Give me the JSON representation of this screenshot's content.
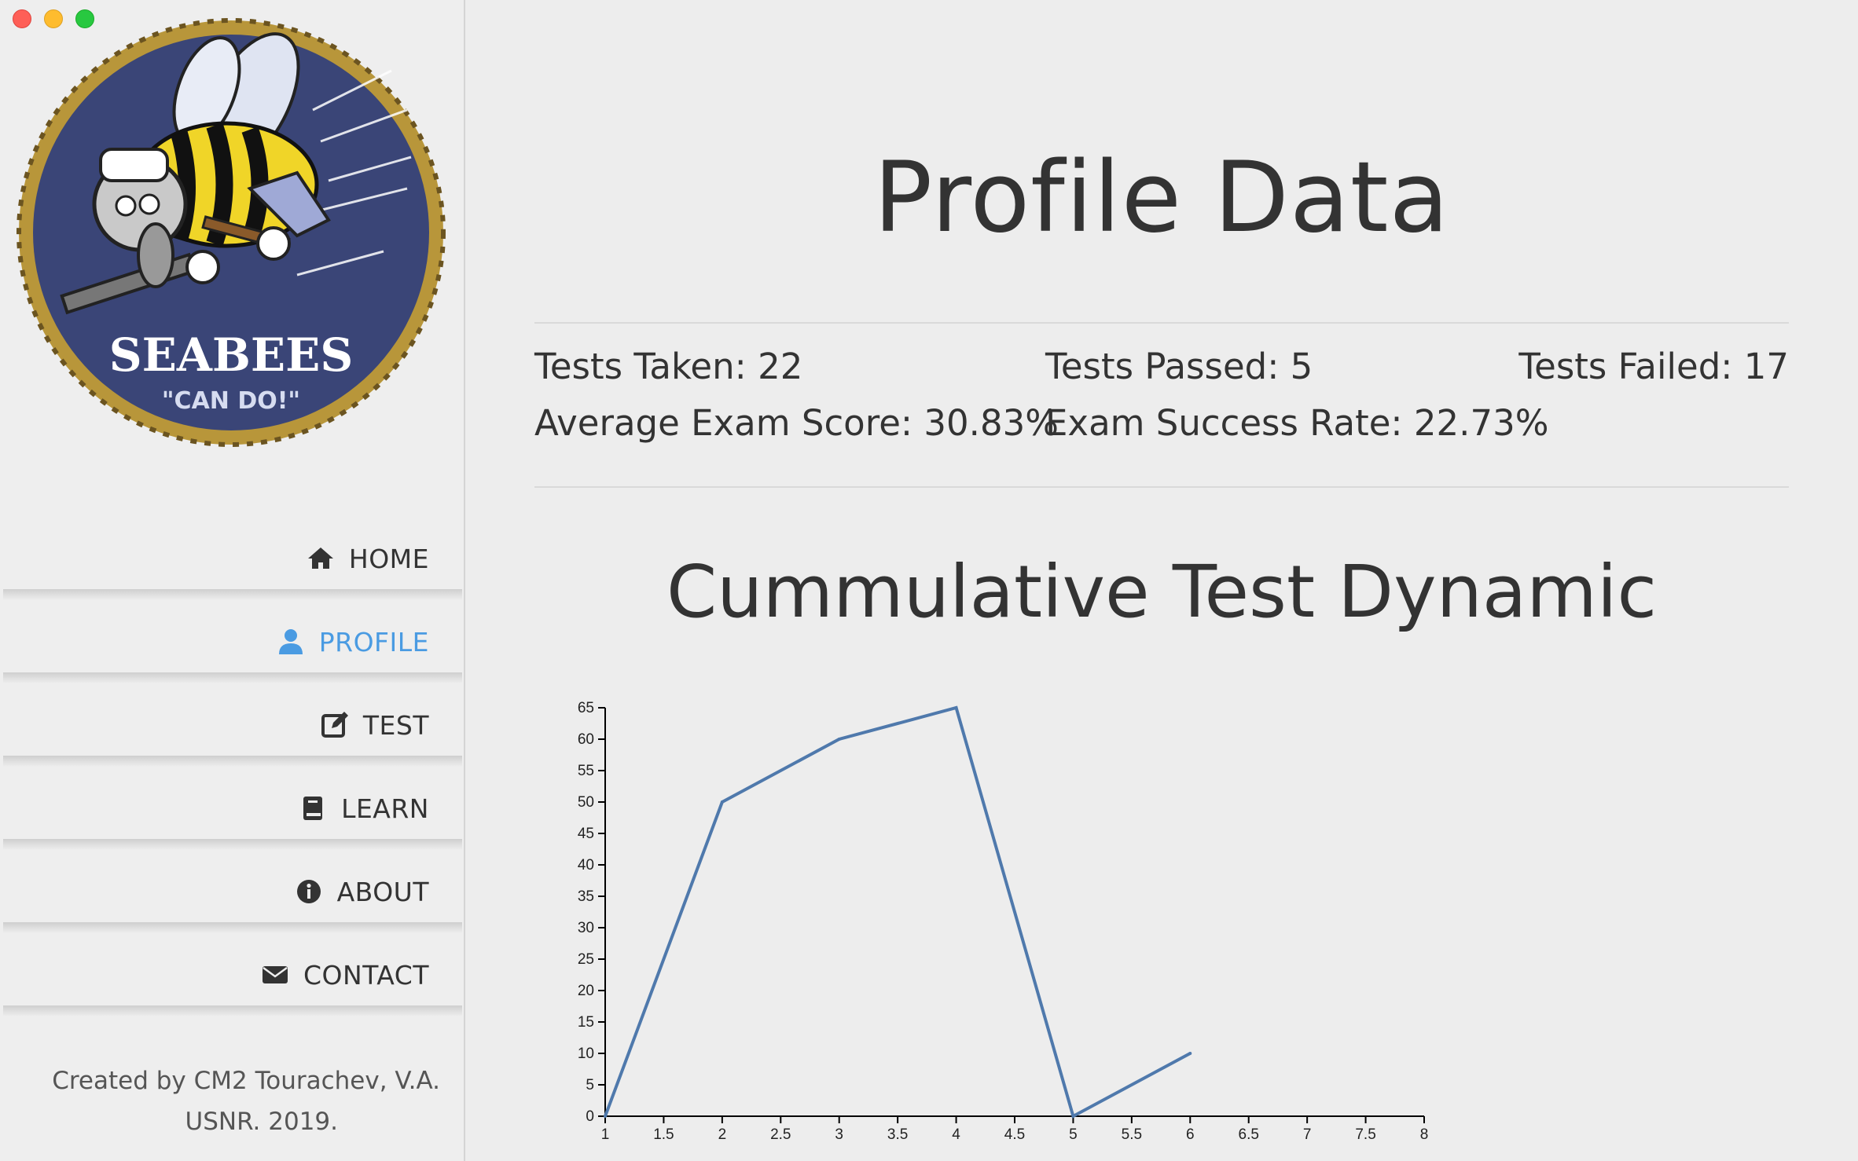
{
  "sidebar": {
    "logo": {
      "text_main": "SEABEES",
      "text_sub": "\"CAN DO!\""
    },
    "nav": [
      {
        "label": "HOME",
        "icon": "home-icon",
        "active": false
      },
      {
        "label": "PROFILE",
        "icon": "user-icon",
        "active": true
      },
      {
        "label": "TEST",
        "icon": "edit-icon",
        "active": false
      },
      {
        "label": "LEARN",
        "icon": "book-icon",
        "active": false
      },
      {
        "label": "ABOUT",
        "icon": "info-icon",
        "active": false
      },
      {
        "label": "CONTACT",
        "icon": "envelope-icon",
        "active": false
      }
    ],
    "footer": {
      "line1": "Created by CM2 Tourachev, V.A.",
      "line2": "USNR. 2019."
    }
  },
  "main": {
    "title": "Profile Data",
    "stats": {
      "tests_taken": "Tests Taken: 22",
      "tests_passed": "Tests Passed: 5",
      "tests_failed": "Tests Failed: 17",
      "average_score": "Average Exam Score: 30.83%",
      "success_rate": "Exam Success Rate: 22.73%"
    },
    "chart_title": "Cummulative Test Dynamic"
  },
  "colors": {
    "accent": "#4a9be2",
    "line": "#4f79ac",
    "text": "#333333",
    "logo_blue": "#3a4577",
    "logo_gold": "#b8963a"
  },
  "chart_data": {
    "type": "line",
    "title": "Cummulative Test Dynamic",
    "x": [
      1,
      2,
      3,
      4,
      5,
      6
    ],
    "y": [
      0,
      50,
      60,
      65,
      0,
      10
    ],
    "xlim": [
      1,
      8
    ],
    "ylim": [
      0,
      65
    ],
    "x_ticks": [
      1,
      1.5,
      2,
      2.5,
      3,
      3.5,
      4,
      4.5,
      5,
      5.5,
      6,
      6.5,
      7,
      7.5,
      8
    ],
    "y_ticks": [
      0,
      5,
      10,
      15,
      20,
      25,
      30,
      35,
      40,
      45,
      50,
      55,
      60,
      65
    ],
    "grid": false
  }
}
